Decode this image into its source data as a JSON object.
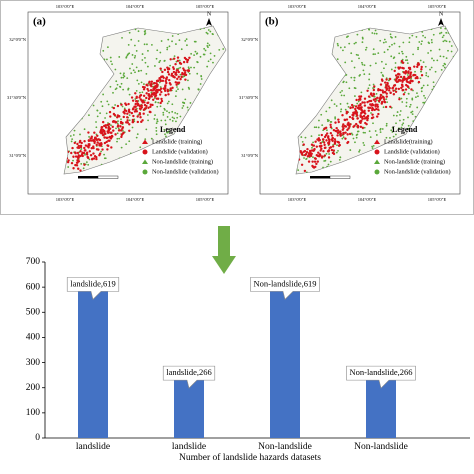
{
  "maps": [
    {
      "label": "(a)",
      "north": "N",
      "legend_title": "Legend",
      "legend_items": [
        "Landslide (training)",
        "Landslide (validation)",
        "Non-landslide (training)",
        "Non-landslide (validation)"
      ],
      "lon_labels": [
        "103°0'0\"E",
        "104°0'0\"E",
        "105°0'0\"E"
      ],
      "lat_labels": [
        "32°0'0\"N",
        "31°30'0\"N",
        "31°0'0\"N"
      ]
    },
    {
      "label": "(b)",
      "north": "N",
      "legend_title": "Legend",
      "legend_items": [
        "Landslide(training)",
        "Landslide (validation)",
        "Non-landslide (training)",
        "Non-landslide (validation)"
      ],
      "lon_labels": [
        "103°0'0\"E",
        "104°0'0\"E",
        "105°0'0\"E"
      ],
      "lat_labels": [
        "32°0'0\"N",
        "31°30'0\"N",
        "31°0'0\"N"
      ]
    }
  ],
  "chart_data": {
    "type": "bar",
    "x_label": "Number of landslide hazards datasets",
    "categories": [
      "landslide",
      "landslide",
      "Non-landslide",
      "Non-landslide"
    ],
    "values": [
      619,
      266,
      619,
      266
    ],
    "value_labels": [
      "landslide,619",
      "landslide,266",
      "Non-landslide,619",
      "Non-landslide,266"
    ],
    "color": "#4472c4",
    "ylim": [
      0,
      700
    ],
    "yticks": [
      0,
      100,
      200,
      300,
      400,
      500,
      600,
      700
    ]
  }
}
